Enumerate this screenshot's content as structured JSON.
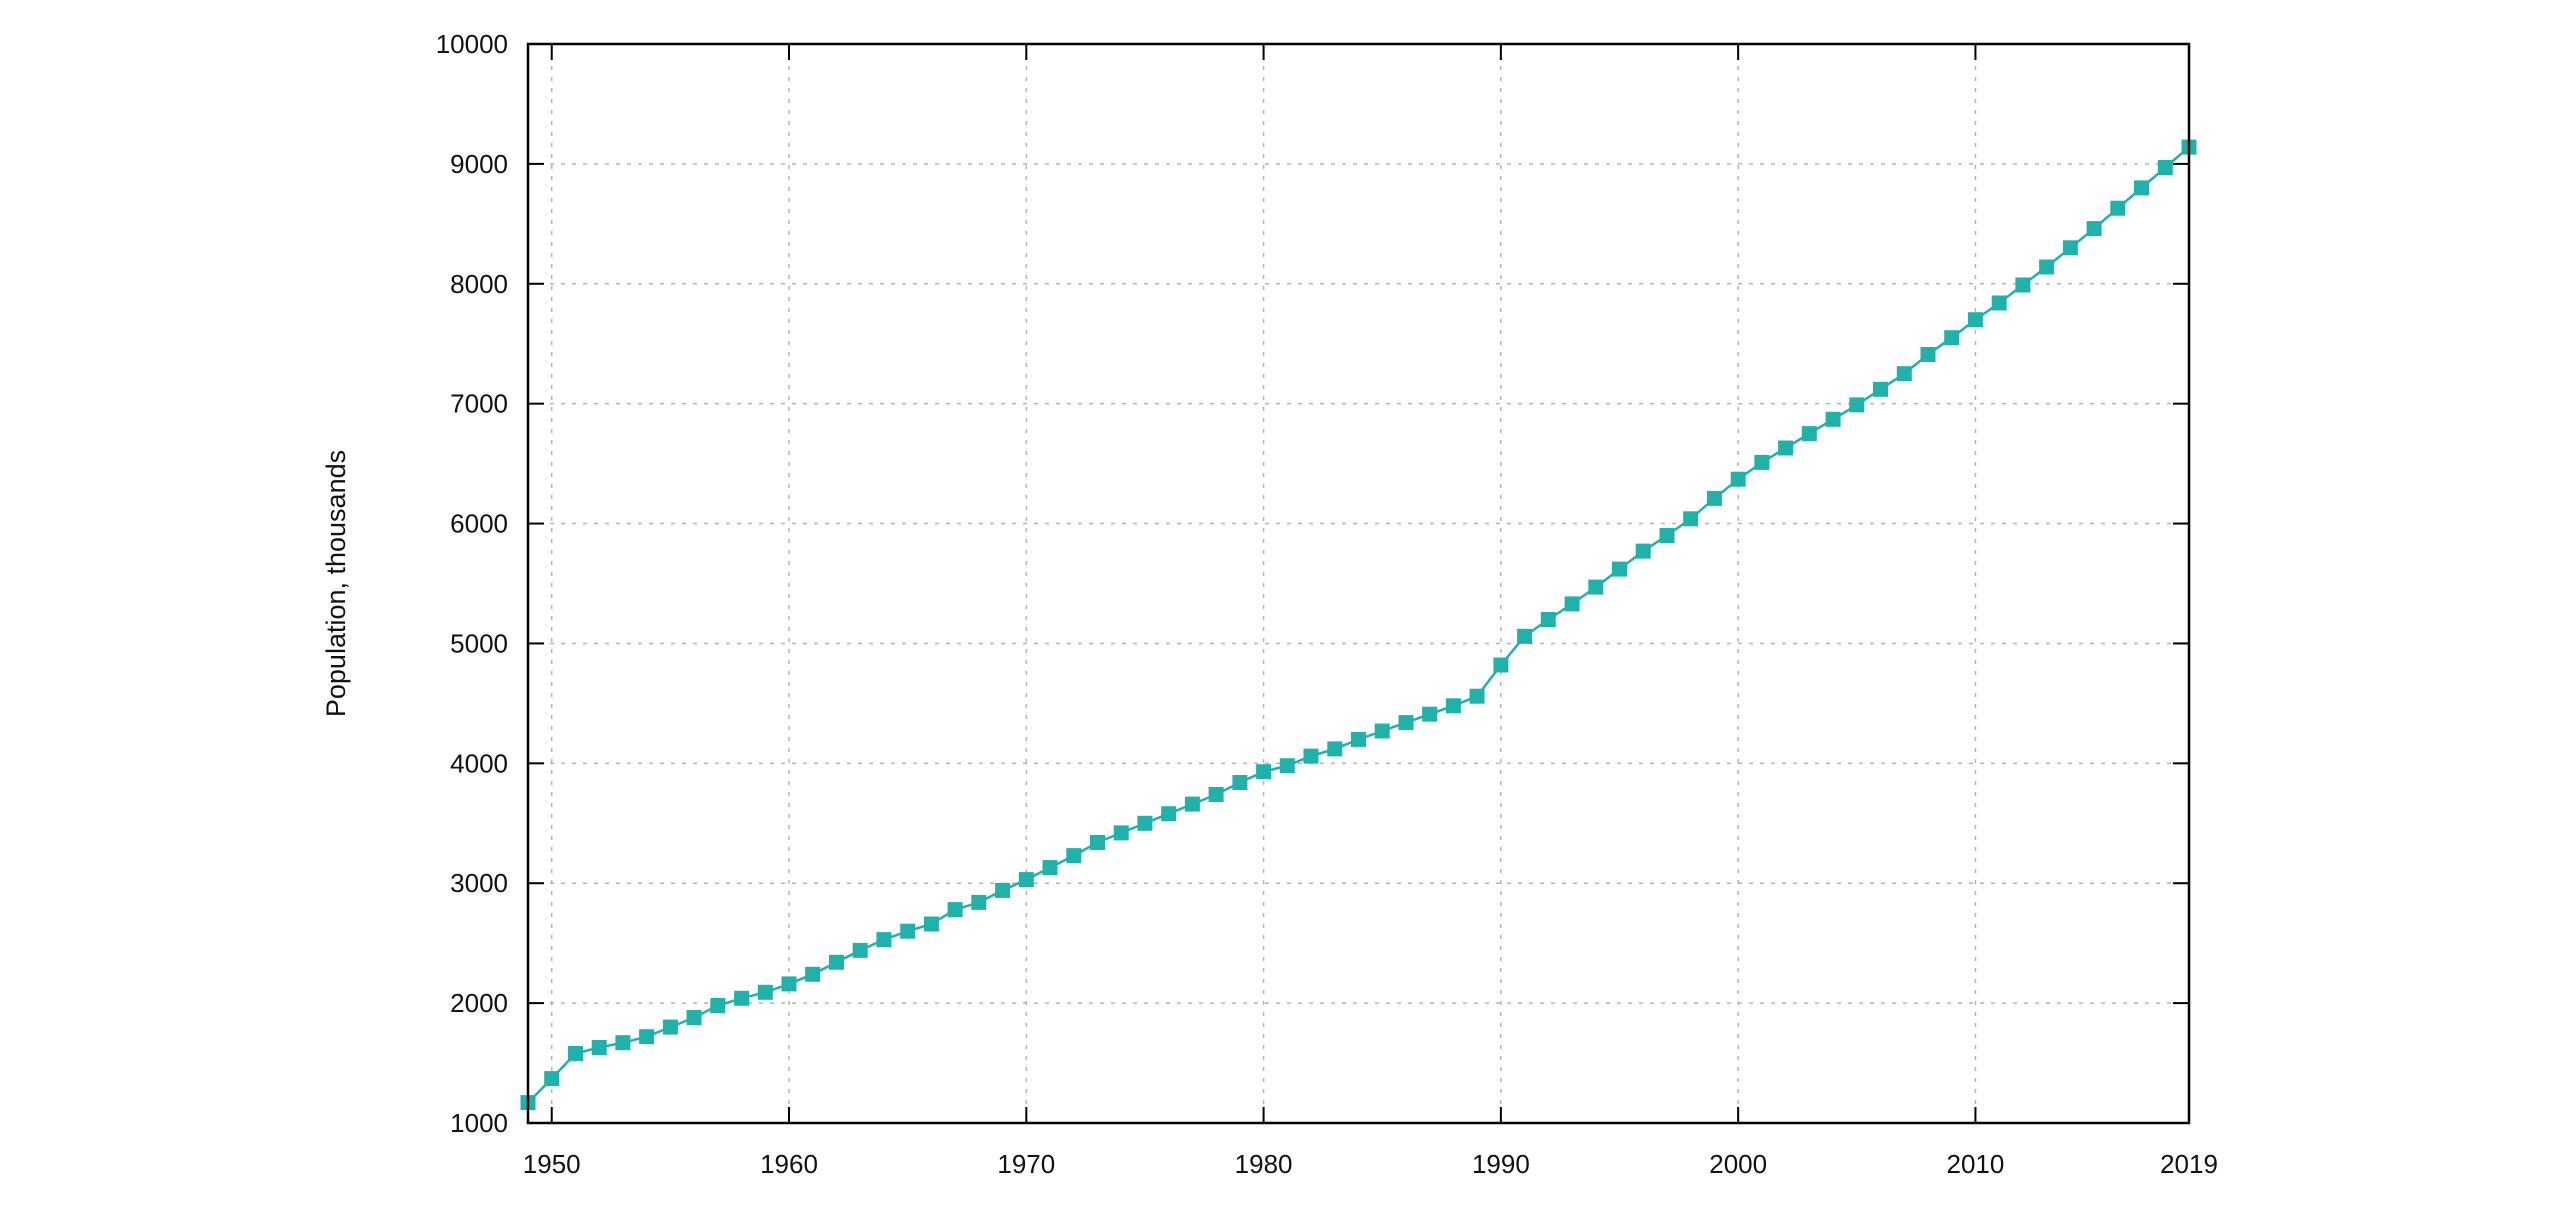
{
  "chart_data": {
    "type": "line",
    "title": "",
    "xlabel": "",
    "ylabel": "Population, thousands",
    "xlim": [
      1949,
      2019
    ],
    "ylim": [
      1000,
      10000
    ],
    "x_ticks": [
      1950,
      1960,
      1970,
      1980,
      1990,
      2000,
      2010,
      2019
    ],
    "y_ticks": [
      1000,
      2000,
      3000,
      4000,
      5000,
      6000,
      7000,
      8000,
      9000,
      10000
    ],
    "grid": true,
    "legend": "none",
    "marker": "square",
    "color": "#20b2aa",
    "series": [
      {
        "x": [
          1949,
          1950,
          1951,
          1952,
          1953,
          1954,
          1955,
          1956,
          1957,
          1958,
          1959,
          1960,
          1961,
          1962,
          1963,
          1964,
          1965,
          1966,
          1967,
          1968,
          1969,
          1970,
          1971,
          1972,
          1973,
          1974,
          1975,
          1976,
          1977,
          1978,
          1979,
          1980,
          1981,
          1982,
          1983,
          1984,
          1985,
          1986,
          1987,
          1988,
          1989,
          1990,
          1991,
          1992,
          1993,
          1994,
          1995,
          1996,
          1997,
          1998,
          1999,
          2000,
          2001,
          2002,
          2003,
          2004,
          2005,
          2006,
          2007,
          2008,
          2009,
          2010,
          2011,
          2012,
          2013,
          2014,
          2015,
          2016,
          2017,
          2018,
          2019
        ],
        "values": [
          1170,
          1370,
          1580,
          1630,
          1670,
          1720,
          1800,
          1880,
          1980,
          2040,
          2090,
          2160,
          2240,
          2340,
          2440,
          2530,
          2600,
          2660,
          2780,
          2840,
          2940,
          3030,
          3130,
          3230,
          3340,
          3420,
          3500,
          3580,
          3660,
          3740,
          3840,
          3930,
          3980,
          4060,
          4120,
          4200,
          4270,
          4340,
          4410,
          4480,
          4560,
          4820,
          5060,
          5200,
          5330,
          5470,
          5620,
          5770,
          5900,
          6040,
          6210,
          6370,
          6510,
          6630,
          6750,
          6870,
          6990,
          7120,
          7250,
          7410,
          7550,
          7700,
          7840,
          7990,
          8140,
          8300,
          8460,
          8630,
          8800,
          8970,
          9140
        ]
      }
    ]
  }
}
